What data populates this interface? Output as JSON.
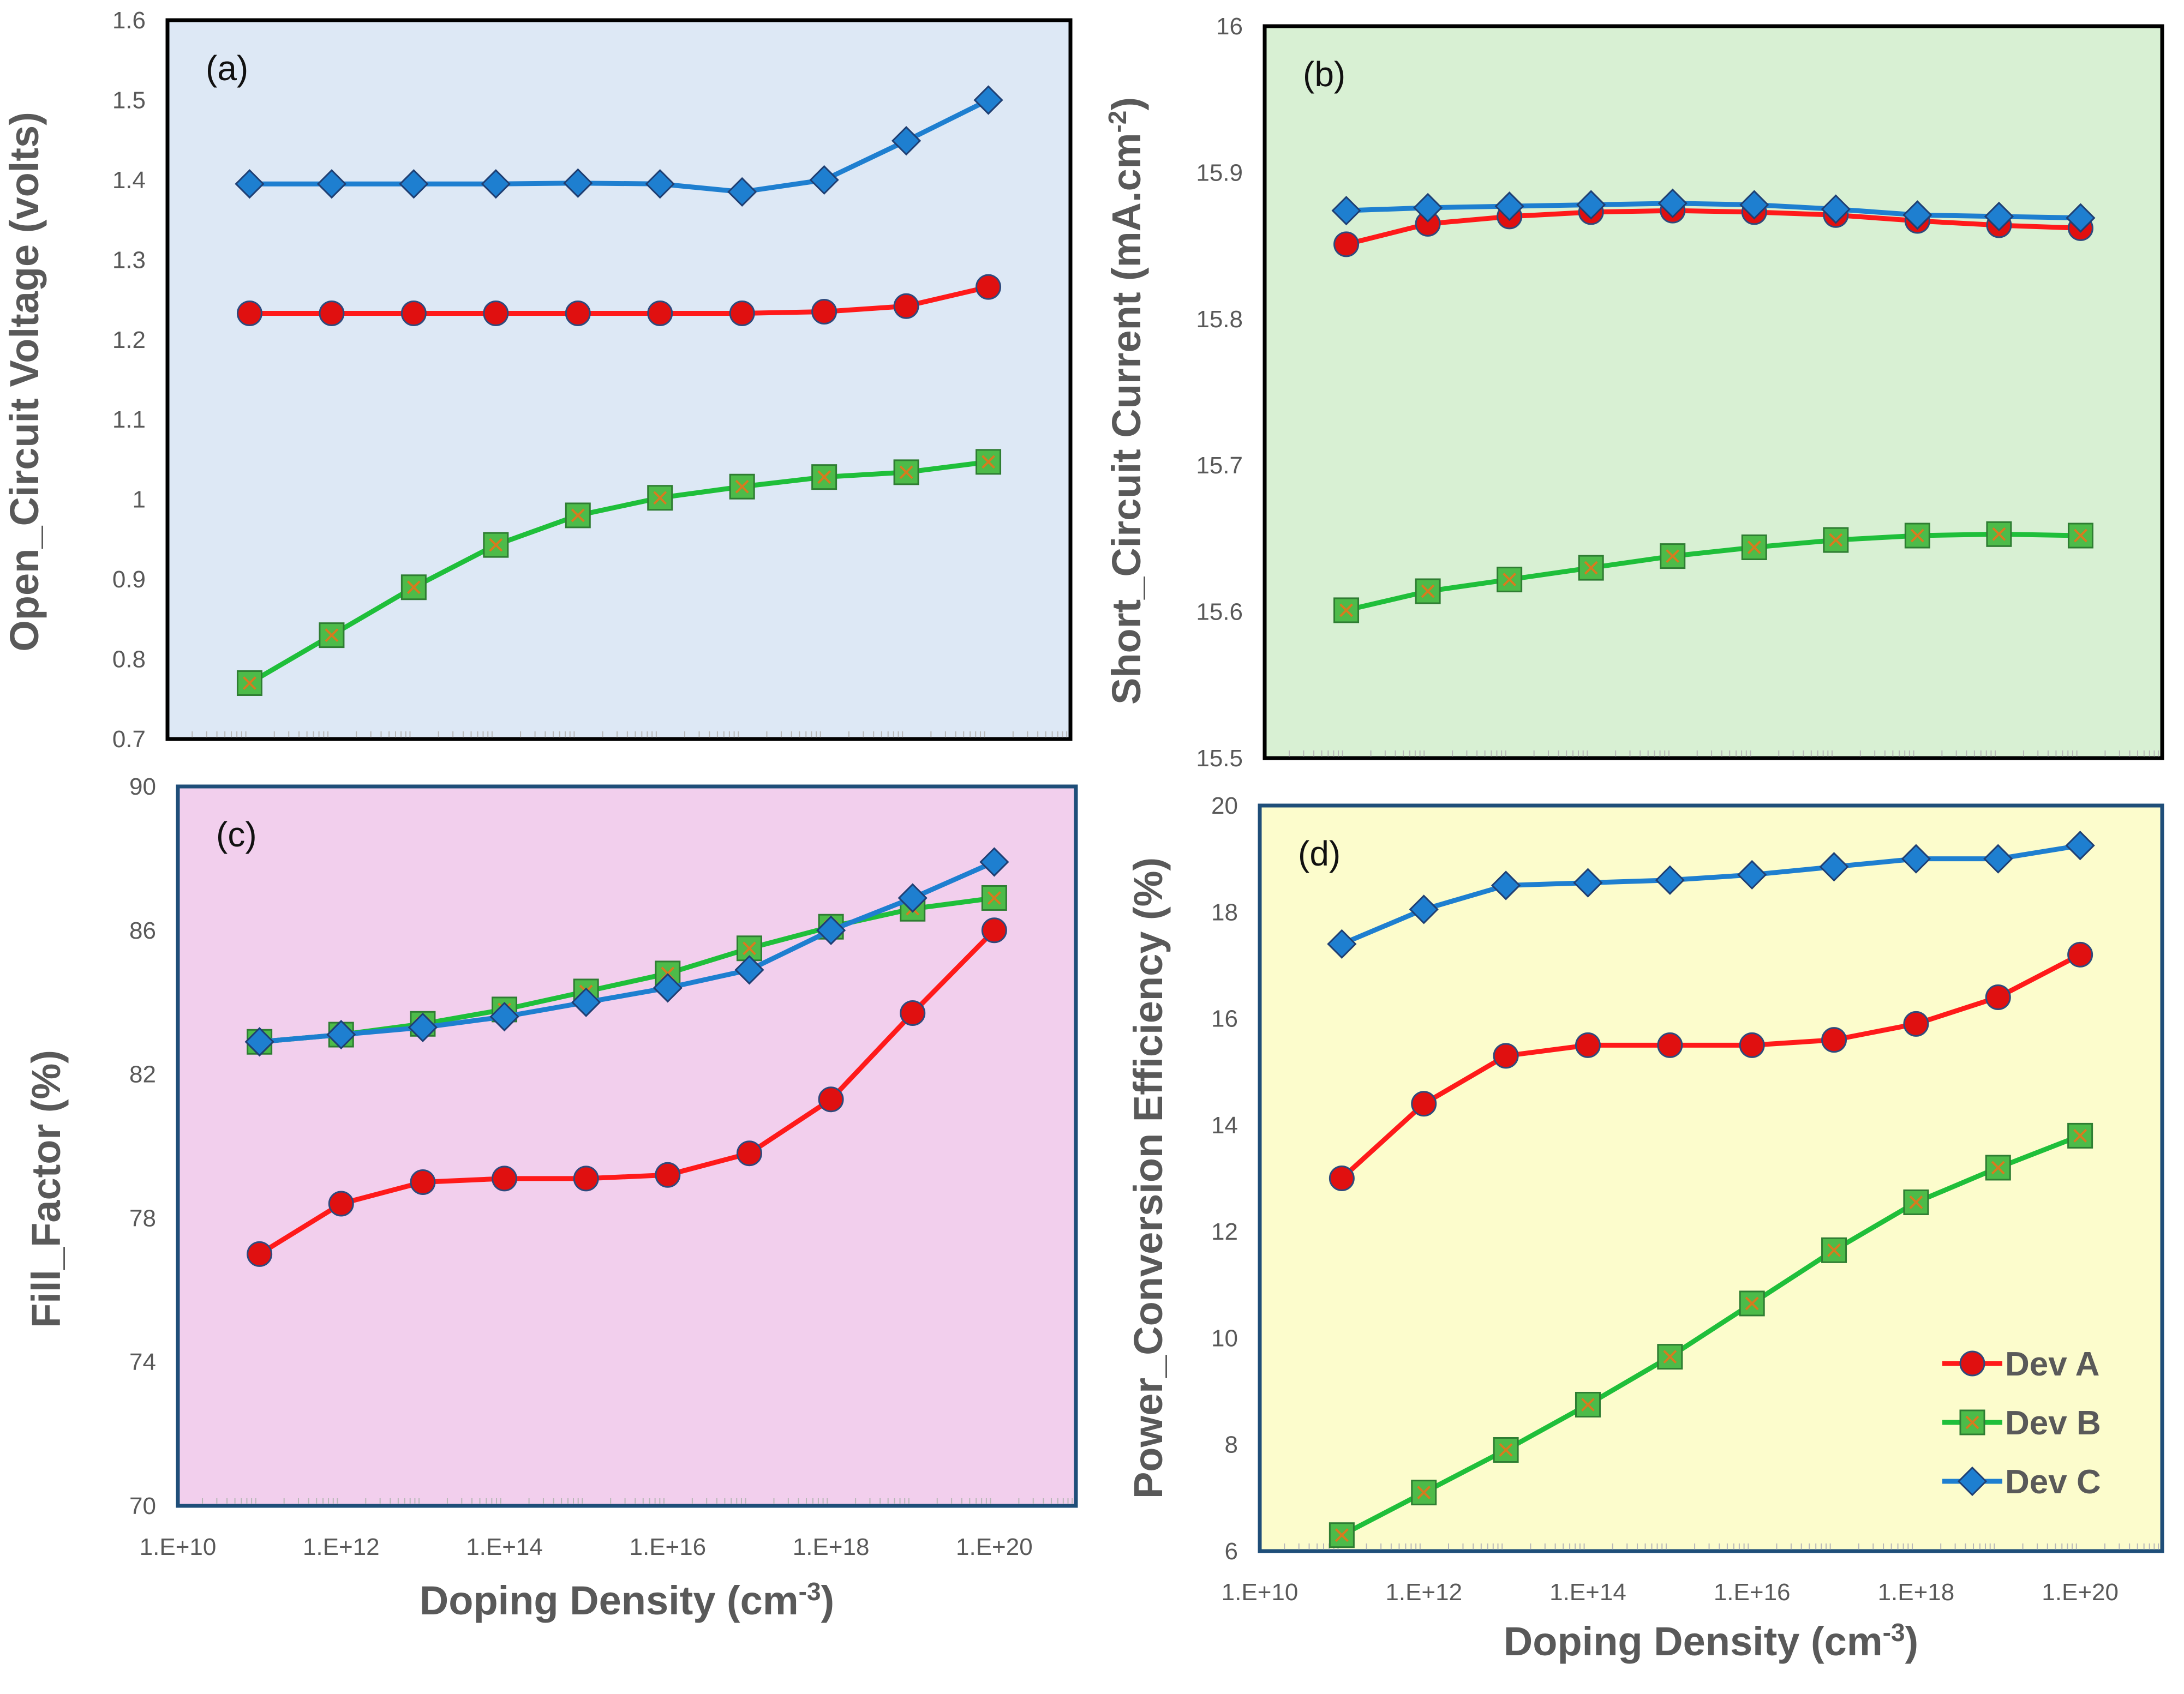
{
  "figure": {
    "legend": {
      "entries": [
        {
          "series": "Dev A"
        },
        {
          "series": "Dev B"
        },
        {
          "series": "Dev C"
        }
      ]
    }
  },
  "colors": {
    "dev_a_line": "#ff1a1a",
    "dev_a_marker_fill": "#e01010",
    "dev_a_marker_edge": "#2e4a7d",
    "dev_b_line": "#1fbf3a",
    "dev_b_marker_fill": "#4dbb49",
    "dev_b_marker_edge": "#2e7d32",
    "dev_b_marker_cross": "#d97a1e",
    "dev_c_line": "#1e7fd0",
    "dev_c_marker_fill": "#1e7fd0",
    "dev_c_marker_edge": "#1f3f73",
    "panel_a_bg": "#dde8f5",
    "panel_b_bg": "#d8f0d3",
    "panel_c_bg": "#f2cfed",
    "panel_d_bg": "#fcfccc",
    "panel_a_border": "#000000",
    "panel_b_border": "#000000",
    "panel_c_border": "#1f4e79",
    "panel_d_border": "#1f4e79"
  },
  "chart_data": [
    {
      "id": "a",
      "type": "line",
      "panel_label": "(a)",
      "title": "",
      "xlabel": "",
      "ylabel": "Open_Circuit Voltage (volts)",
      "xscale": "log",
      "x": [
        100000000000.0,
        1000000000000.0,
        10000000000000.0,
        100000000000000.0,
        1000000000000000.0,
        1e+16,
        1e+17,
        1e+18,
        1e+19,
        1e+20
      ],
      "xlim": [
        10000000000.0,
        1e+21
      ],
      "ylim": [
        0.7,
        1.6
      ],
      "yticks": [
        "0.7",
        "0.8",
        "0.9",
        "1",
        "1.1",
        "1.2",
        "1.3",
        "1.4",
        "1.5",
        "1.6"
      ],
      "xticks": [],
      "series": [
        {
          "name": "Dev A",
          "values": [
            1.233,
            1.233,
            1.233,
            1.233,
            1.233,
            1.233,
            1.233,
            1.235,
            1.242,
            1.266
          ]
        },
        {
          "name": "Dev B",
          "values": [
            0.77,
            0.83,
            0.89,
            0.943,
            0.98,
            1.002,
            1.016,
            1.028,
            1.034,
            1.047
          ]
        },
        {
          "name": "Dev C",
          "values": [
            1.395,
            1.395,
            1.395,
            1.395,
            1.396,
            1.395,
            1.385,
            1.4,
            1.449,
            1.5
          ]
        }
      ],
      "grid": false,
      "legend": "none"
    },
    {
      "id": "b",
      "type": "line",
      "panel_label": "(b)",
      "title": "",
      "xlabel": "",
      "ylabel": "Short_Circuit Current (mA.cm-2)",
      "xscale": "log",
      "x": [
        100000000000.0,
        1000000000000.0,
        10000000000000.0,
        100000000000000.0,
        1000000000000000.0,
        1e+16,
        1e+17,
        1e+18,
        1e+19,
        1e+20
      ],
      "xlim": [
        10000000000.0,
        1e+21
      ],
      "ylim": [
        15.5,
        16.0
      ],
      "yticks": [
        "15.5",
        "15.6",
        "15.7",
        "15.8",
        "15.9",
        "16"
      ],
      "xticks": [],
      "series": [
        {
          "name": "Dev A",
          "values": [
            15.851,
            15.865,
            15.87,
            15.873,
            15.874,
            15.873,
            15.871,
            15.867,
            15.864,
            15.862
          ]
        },
        {
          "name": "Dev B",
          "values": [
            15.601,
            15.614,
            15.622,
            15.63,
            15.638,
            15.644,
            15.649,
            15.652,
            15.653,
            15.652
          ]
        },
        {
          "name": "Dev C",
          "values": [
            15.874,
            15.876,
            15.877,
            15.878,
            15.879,
            15.878,
            15.875,
            15.871,
            15.87,
            15.869
          ]
        }
      ],
      "grid": false,
      "legend": "none"
    },
    {
      "id": "c",
      "type": "line",
      "panel_label": "(c)",
      "title": "",
      "xlabel": "Doping Density (cm-3)",
      "ylabel": "Fill_Factor (%)",
      "xscale": "log",
      "x": [
        100000000000.0,
        1000000000000.0,
        10000000000000.0,
        100000000000000.0,
        1000000000000000.0,
        1e+16,
        1e+17,
        1e+18,
        1e+19,
        1e+20
      ],
      "xlim": [
        10000000000.0,
        1e+21
      ],
      "ylim": [
        70,
        90
      ],
      "yticks": [
        "70",
        "74",
        "78",
        "82",
        "86",
        "90"
      ],
      "xticks": [
        "1.E+10",
        "1.E+12",
        "1.E+14",
        "1.E+16",
        "1.E+18",
        "1.E+20"
      ],
      "series": [
        {
          "name": "Dev A",
          "values": [
            77.0,
            78.4,
            79.0,
            79.1,
            79.1,
            79.2,
            79.8,
            81.3,
            83.7,
            86.0
          ]
        },
        {
          "name": "Dev B",
          "values": [
            82.9,
            83.1,
            83.4,
            83.8,
            84.3,
            84.8,
            85.5,
            86.1,
            86.6,
            86.9
          ]
        },
        {
          "name": "Dev C",
          "values": [
            82.9,
            83.1,
            83.3,
            83.6,
            84.0,
            84.4,
            84.9,
            86.0,
            86.9,
            87.9
          ]
        }
      ],
      "grid": false,
      "legend": "none"
    },
    {
      "id": "d",
      "type": "line",
      "panel_label": "(d)",
      "title": "",
      "xlabel": "Doping Density (cm-3)",
      "ylabel": "Power_Conversion Efficiency (%)",
      "xscale": "log",
      "x": [
        100000000000.0,
        1000000000000.0,
        10000000000000.0,
        100000000000000.0,
        1000000000000000.0,
        1e+16,
        1e+17,
        1e+18,
        1e+19,
        1e+20
      ],
      "xlim": [
        10000000000.0,
        1e+21
      ],
      "ylim": [
        6,
        20
      ],
      "yticks": [
        "6",
        "8",
        "10",
        "12",
        "14",
        "16",
        "18",
        "20"
      ],
      "xticks": [
        "1.E+10",
        "1.E+12",
        "1.E+14",
        "1.E+16",
        "1.E+18",
        "1.E+20"
      ],
      "series": [
        {
          "name": "Dev A",
          "values": [
            13.0,
            14.4,
            15.3,
            15.5,
            15.5,
            15.5,
            15.6,
            15.9,
            16.4,
            17.2
          ]
        },
        {
          "name": "Dev B",
          "values": [
            6.3,
            7.1,
            7.9,
            8.75,
            9.65,
            10.65,
            11.65,
            12.55,
            13.2,
            13.8
          ]
        },
        {
          "name": "Dev C",
          "values": [
            17.4,
            18.05,
            18.5,
            18.55,
            18.6,
            18.7,
            18.85,
            19.0,
            19.0,
            19.25
          ]
        }
      ],
      "grid": false,
      "legend": "bottom-right"
    }
  ]
}
